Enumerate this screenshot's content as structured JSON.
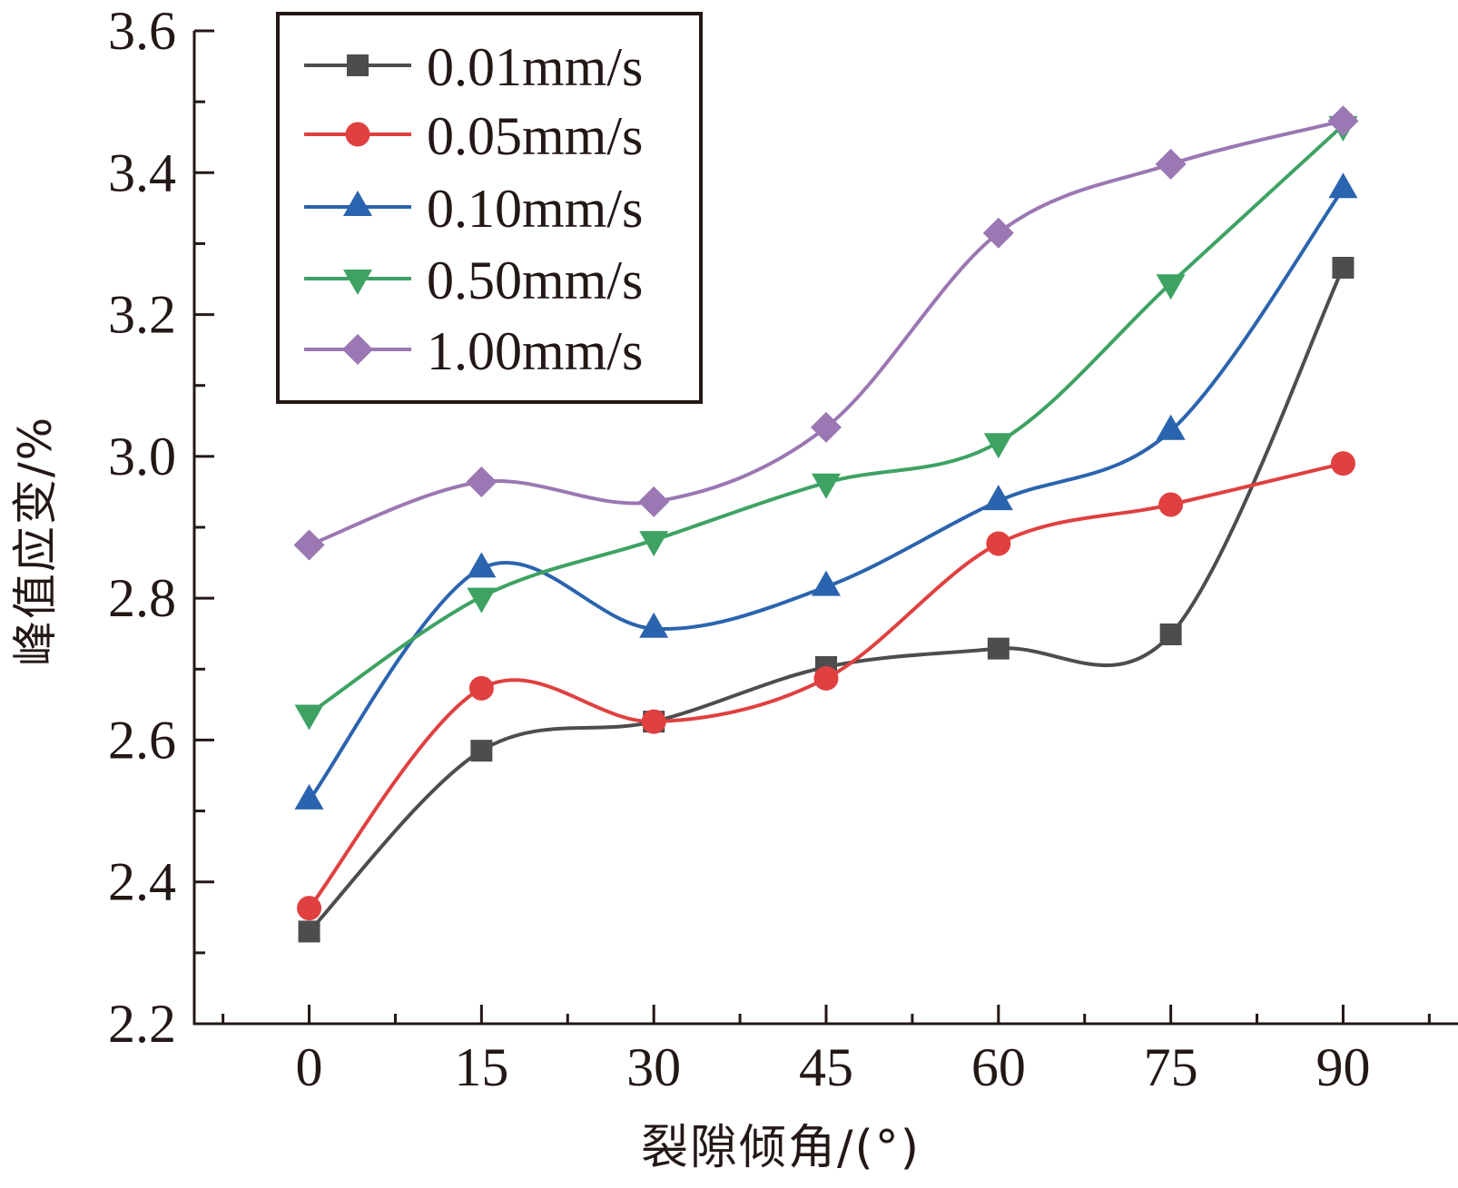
{
  "chart_data": {
    "type": "line",
    "title": "",
    "xlabel": "裂隙倾角/(°)",
    "ylabel": "峰值应变/%",
    "x": [
      0,
      15,
      30,
      45,
      60,
      75,
      90
    ],
    "xlim": [
      -10,
      100
    ],
    "ylim": [
      2.2,
      3.6
    ],
    "xticks": [
      0,
      15,
      30,
      45,
      60,
      75,
      90
    ],
    "xtick_labels": [
      "0",
      "15",
      "30",
      "45",
      "60",
      "75",
      "90"
    ],
    "xminor_step": 7.5,
    "yticks": [
      2.2,
      2.4,
      2.6,
      2.8,
      3.0,
      3.2,
      3.4,
      3.6
    ],
    "ytick_labels": [
      "2.2",
      "2.4",
      "2.6",
      "2.8",
      "3.0",
      "3.2",
      "3.4",
      "3.6"
    ],
    "yminor_step": 0.1,
    "grid": false,
    "smooth": true,
    "legend_position": "top-left",
    "series": [
      {
        "name": "0.01mm/s",
        "marker": "square",
        "color": "#4d4d4d",
        "values": [
          2.33,
          2.585,
          2.626,
          2.703,
          2.729,
          2.749,
          3.266
        ]
      },
      {
        "name": "0.05mm/s",
        "marker": "circle",
        "color": "#e04040",
        "values": [
          2.363,
          2.673,
          2.626,
          2.687,
          2.877,
          2.932,
          2.99
        ]
      },
      {
        "name": "0.10mm/s",
        "marker": "triangle-up",
        "color": "#2b64ae",
        "values": [
          2.515,
          2.842,
          2.757,
          2.816,
          2.937,
          3.036,
          3.377
        ]
      },
      {
        "name": "0.50mm/s",
        "marker": "triangle-down",
        "color": "#3ea263",
        "values": [
          2.637,
          2.802,
          2.882,
          2.963,
          3.02,
          3.244,
          3.467
        ]
      },
      {
        "name": "1.00mm/s",
        "marker": "diamond",
        "color": "#9b77b3",
        "values": [
          2.875,
          2.964,
          2.936,
          3.041,
          3.315,
          3.412,
          3.473
        ]
      }
    ]
  }
}
